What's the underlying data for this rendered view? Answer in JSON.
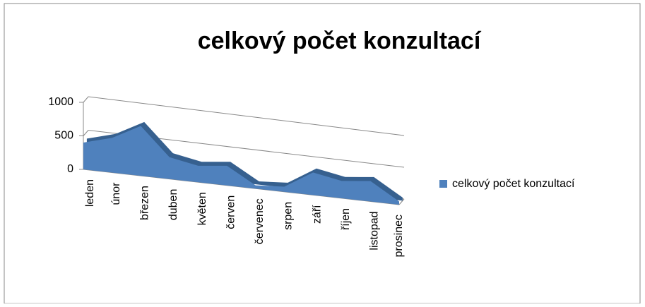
{
  "chart_data": {
    "type": "area3d",
    "title": "celkový počet konzultací",
    "categories": [
      "leden",
      "únor",
      "březen",
      "duben",
      "květen",
      "červen",
      "červenec",
      "srpen",
      "září",
      "říjen",
      "listopad",
      "prosinec"
    ],
    "series": [
      {
        "name": "celkový počet konzultací",
        "color": "#4f81bd",
        "values": [
          400,
          520,
          750,
          330,
          250,
          300,
          50,
          80,
          350,
          270,
          320,
          50
        ]
      }
    ],
    "ylim": [
      0,
      1000
    ],
    "yticks": [
      0,
      500,
      1000
    ],
    "grid": true,
    "legend": "right"
  }
}
